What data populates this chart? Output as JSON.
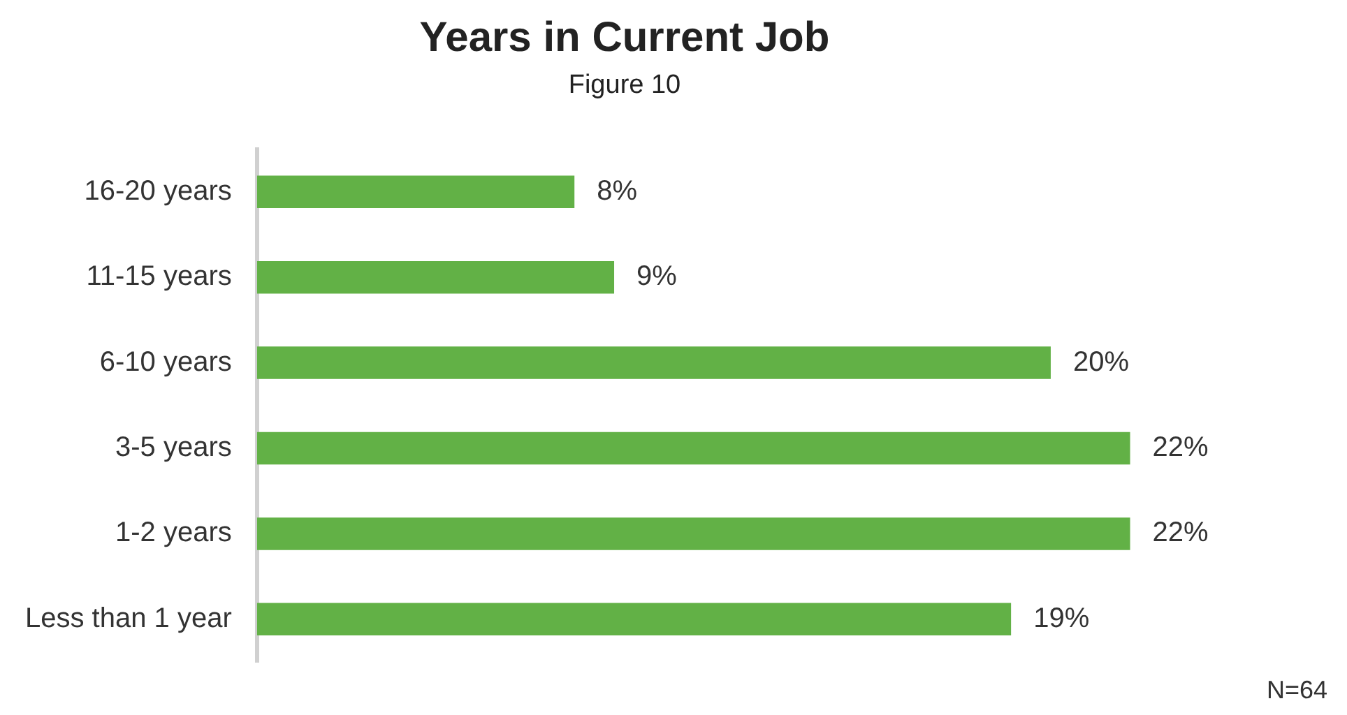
{
  "chart_data": {
    "type": "bar",
    "orientation": "horizontal",
    "title": "Years in Current Job",
    "subtitle": "Figure 10",
    "categories": [
      "16-20 years",
      "11-15 years",
      "6-10 years",
      "3-5 years",
      "1-2 years",
      "Less than 1 year"
    ],
    "values": [
      8,
      9,
      20,
      22,
      22,
      19
    ],
    "color": "#62b146",
    "value_labels": [
      "8%",
      "9%",
      "20%",
      "22%",
      "22%",
      "19%"
    ],
    "relative": false,
    "grid": false,
    "legend": false,
    "annotations": [
      "N=64"
    ]
  }
}
